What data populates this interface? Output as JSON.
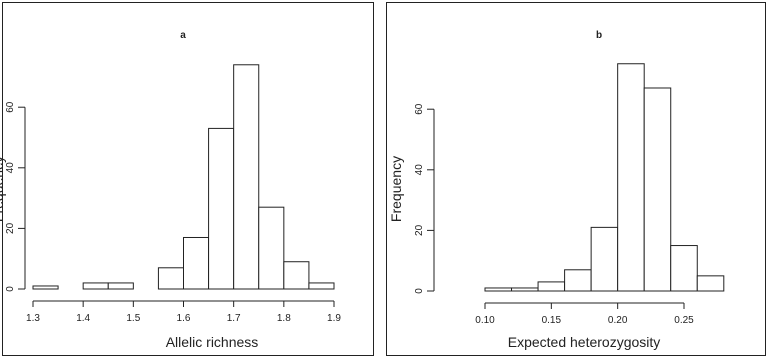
{
  "chart_data": [
    {
      "type": "bar",
      "title": "a",
      "xlabel": "Allelic richness",
      "ylabel": "Frequency",
      "x_ticks": [
        "1.3",
        "1.4",
        "1.5",
        "1.6",
        "1.7",
        "1.8",
        "1.9"
      ],
      "y_ticks": [
        "0",
        "20",
        "40",
        "60"
      ],
      "xlim": [
        1.3,
        1.9
      ],
      "ylim": [
        0,
        75
      ],
      "bins": [
        {
          "start": 1.3,
          "end": 1.35,
          "count": 1
        },
        {
          "start": 1.35,
          "end": 1.4,
          "count": 0
        },
        {
          "start": 1.4,
          "end": 1.45,
          "count": 2
        },
        {
          "start": 1.45,
          "end": 1.5,
          "count": 2
        },
        {
          "start": 1.5,
          "end": 1.55,
          "count": 0
        },
        {
          "start": 1.55,
          "end": 1.6,
          "count": 7
        },
        {
          "start": 1.6,
          "end": 1.65,
          "count": 17
        },
        {
          "start": 1.65,
          "end": 1.7,
          "count": 53
        },
        {
          "start": 1.7,
          "end": 1.75,
          "count": 74
        },
        {
          "start": 1.75,
          "end": 1.8,
          "count": 27
        },
        {
          "start": 1.8,
          "end": 1.85,
          "count": 9
        },
        {
          "start": 1.85,
          "end": 1.9,
          "count": 2
        }
      ],
      "grid": false
    },
    {
      "type": "bar",
      "title": "b",
      "xlabel": "Expected heterozygosity",
      "ylabel": "Frequency",
      "x_ticks": [
        "0.10",
        "0.15",
        "0.20",
        "0.25"
      ],
      "y_ticks": [
        "0",
        "20",
        "40",
        "60"
      ],
      "xlim": [
        0.1,
        0.275
      ],
      "ylim": [
        0,
        75
      ],
      "bins": [
        {
          "start": 0.1,
          "end": 0.12,
          "count": 1
        },
        {
          "start": 0.12,
          "end": 0.14,
          "count": 1
        },
        {
          "start": 0.14,
          "end": 0.16,
          "count": 3
        },
        {
          "start": 0.16,
          "end": 0.18,
          "count": 7
        },
        {
          "start": 0.18,
          "end": 0.2,
          "count": 21
        },
        {
          "start": 0.2,
          "end": 0.22,
          "count": 75
        },
        {
          "start": 0.22,
          "end": 0.24,
          "count": 67
        },
        {
          "start": 0.24,
          "end": 0.26,
          "count": 15
        },
        {
          "start": 0.26,
          "end": 0.28,
          "count": 5
        }
      ],
      "grid": false
    }
  ]
}
